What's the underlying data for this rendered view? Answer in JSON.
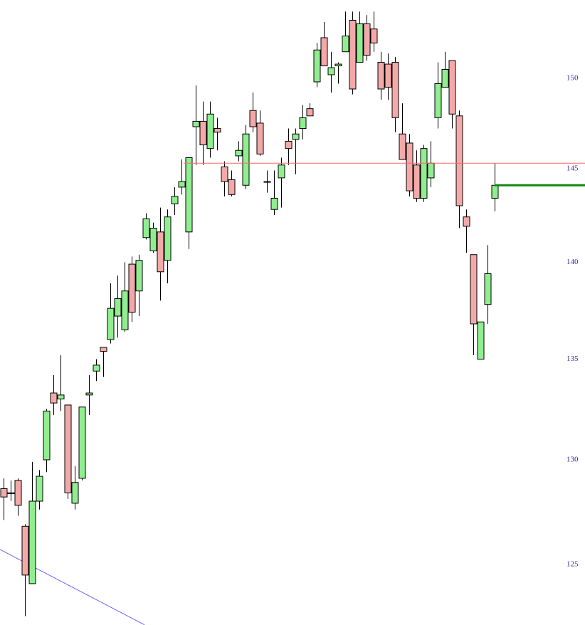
{
  "chart_data": {
    "type": "candlestick",
    "open": [
      128.6,
      128.4,
      129.0,
      126.8,
      124.1,
      128.0,
      130.0,
      133.3,
      133.0,
      132.7,
      127.9,
      129.1,
      133.2,
      134.4,
      135.6,
      136.0,
      137.2,
      136.5,
      139.9,
      138.5,
      141.3,
      140.6,
      141.6,
      140.1,
      143.1,
      144.0,
      141.6,
      147.3,
      147.6,
      146.1,
      147.2,
      145.1,
      144.4,
      145.7,
      144.1,
      148.2,
      147.5,
      144.3,
      142.8,
      144.5,
      146.5,
      146.6,
      147.2,
      148.3,
      149.8,
      152.3,
      150.2,
      150.7,
      151.5,
      153.3,
      150.9,
      153.1,
      152.8,
      150.9,
      150.8,
      150.9,
      146.9,
      146.4,
      145.2,
      143.4,
      144.5,
      147.8,
      149.5,
      151.0,
      147.9,
      142.4,
      140.4,
      135.0,
      137.8,
      143.4
    ],
    "high": [
      129.1,
      129.0,
      129.1,
      126.9,
      129.9,
      129.5,
      132.5,
      134.2,
      135.2,
      132.7,
      129.7,
      132.6,
      134.2,
      135.0,
      135.6,
      138.9,
      139.3,
      140.0,
      140.3,
      140.4,
      142.6,
      142.1,
      142.9,
      142.8,
      144.0,
      145.5,
      145.6,
      149.6,
      148.7,
      148.7,
      147.8,
      145.4,
      144.9,
      146.5,
      147.4,
      149.2,
      148.2,
      144.9,
      144.9,
      145.6,
      147.2,
      147.2,
      148.5,
      148.6,
      152.0,
      153.2,
      151.5,
      150.9,
      153.8,
      153.8,
      153.8,
      153.6,
      153.8,
      151.5,
      151.4,
      151.2,
      148.6,
      146.9,
      146.0,
      146.3,
      146.5,
      150.9,
      151.5,
      151.0,
      148.2,
      142.8,
      140.4,
      136.9,
      140.9,
      145.3
    ],
    "low": [
      127.1,
      128.0,
      127.3,
      122.6,
      124.1,
      127.6,
      129.4,
      132.2,
      132.4,
      128.1,
      127.6,
      129.0,
      132.2,
      133.9,
      134.1,
      135.8,
      136.1,
      136.4,
      136.9,
      137.2,
      141.2,
      140.5,
      138.0,
      138.9,
      142.5,
      143.6,
      140.7,
      145.2,
      145.2,
      145.6,
      146.0,
      143.5,
      143.5,
      145.4,
      143.9,
      147.0,
      145.7,
      143.7,
      142.5,
      142.9,
      145.2,
      144.7,
      146.6,
      147.9,
      149.5,
      150.7,
      149.2,
      149.7,
      151.5,
      149.1,
      150.9,
      151.0,
      151.5,
      148.8,
      148.8,
      147.0,
      145.5,
      143.5,
      143.2,
      143.2,
      144.0,
      147.2,
      149.5,
      147.2,
      141.8,
      140.5,
      135.2,
      135.0,
      136.8,
      142.7
    ],
    "close": [
      128.2,
      128.4,
      127.8,
      124.5,
      128.0,
      129.2,
      132.4,
      132.8,
      133.2,
      128.4,
      128.9,
      132.6,
      133.3,
      134.7,
      135.4,
      137.6,
      138.1,
      138.5,
      137.4,
      140.1,
      142.3,
      141.8,
      139.5,
      142.4,
      143.5,
      144.3,
      145.6,
      147.6,
      146.3,
      148.0,
      147.0,
      144.3,
      143.6,
      146.0,
      146.9,
      147.3,
      145.8,
      144.3,
      143.4,
      145.2,
      146.1,
      146.9,
      147.8,
      147.9,
      151.6,
      150.7,
      150.6,
      150.8,
      152.4,
      149.4,
      153.1,
      151.3,
      152.0,
      149.4,
      149.5,
      147.8,
      145.5,
      143.8,
      143.4,
      146.1,
      145.3,
      149.7,
      150.5,
      148.0,
      143.0,
      141.9,
      136.8,
      136.9,
      139.4,
      144.1
    ],
    "up_color": "#90ee90",
    "down_color": "#f4a9a9",
    "hlines": [
      {
        "value": 145.3,
        "color": "#ff6666",
        "x_start": 25.3
      },
      {
        "value": 144.1,
        "color": "#118811",
        "x_start": 69
      }
    ],
    "trendline": {
      "color": "#6666ff",
      "x": [
        -0.5,
        19.8
      ],
      "values": [
        125.7,
        122.2
      ]
    },
    "ylim": [
      122.19,
      154.47
    ],
    "log_scale": true,
    "yticks": [
      125,
      130,
      135,
      140,
      145,
      150
    ]
  }
}
